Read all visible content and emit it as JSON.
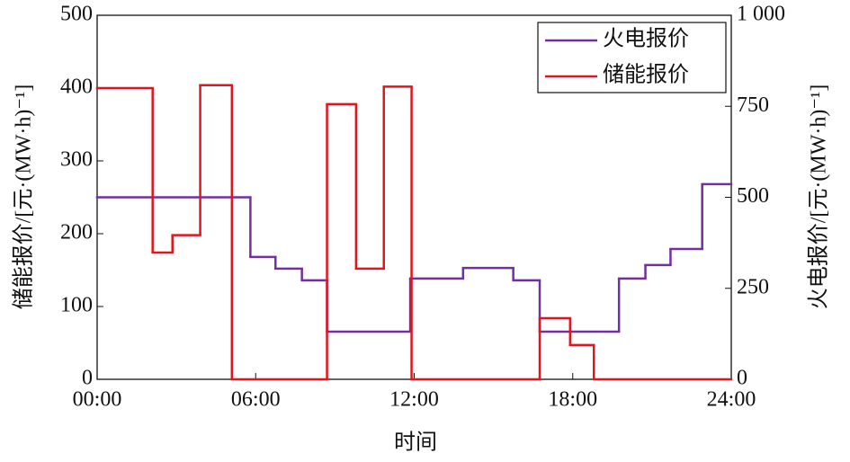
{
  "chart_data": {
    "type": "step",
    "x_label": "时间",
    "y_label": "储能报价/[元·(MW·h)⁻¹]",
    "y2_label": "火电报价/[元·(MW·h)⁻¹]",
    "xlim": [
      0,
      24
    ],
    "xticks": [
      {
        "value": 0,
        "label": "00:00"
      },
      {
        "value": 6,
        "label": "06:00"
      },
      {
        "value": 12,
        "label": "12:00"
      },
      {
        "value": 18,
        "label": "18:00"
      },
      {
        "value": 24,
        "label": "24:00"
      }
    ],
    "ylim": [
      0,
      500
    ],
    "yticks": [
      0,
      100,
      200,
      300,
      400,
      500
    ],
    "y2lim": [
      0,
      1000
    ],
    "y2ticks": [
      0,
      250,
      500,
      750,
      {
        "value": 1000,
        "label": "1 000"
      }
    ],
    "legend": "upper right",
    "series": [
      {
        "name": "火电报价",
        "color": "#7030a0",
        "axis": "y2",
        "x": [
          0,
          5.8,
          6.75,
          7.75,
          8.7,
          11.85,
          13.85,
          15.75,
          16.75,
          19.75,
          20.75,
          21.7,
          22.9
        ],
        "values": [
          500,
          336,
          304,
          272,
          131,
          277,
          306,
          272,
          131,
          277,
          314,
          358,
          536
        ]
      },
      {
        "name": "储能报价",
        "color": "#e0161e",
        "axis": "y",
        "x": [
          0,
          2.1,
          2.85,
          3.9,
          5.1,
          8.7,
          9.8,
          10.85,
          11.9,
          16.75,
          17.9,
          18.8
        ],
        "values": [
          400,
          174,
          198,
          404,
          0,
          378,
          152,
          402,
          0,
          84,
          47,
          0
        ]
      }
    ]
  }
}
